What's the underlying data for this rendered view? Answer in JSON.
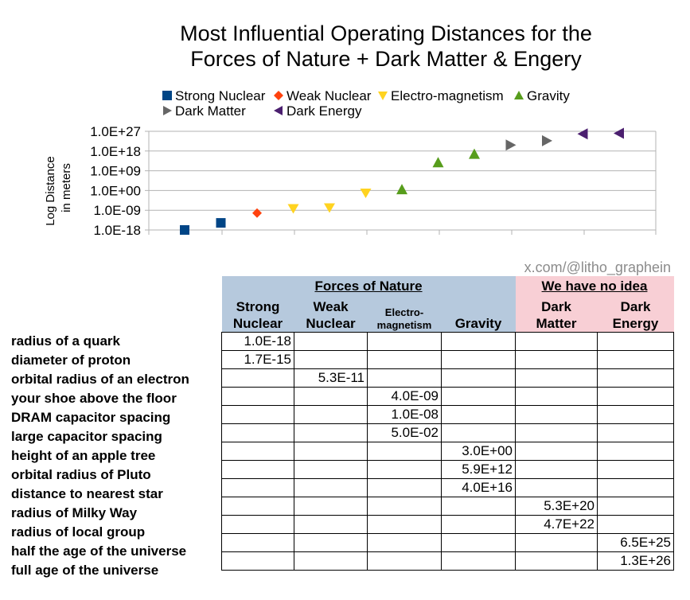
{
  "colors": {
    "strong": "#004586",
    "weak": "#ff420e",
    "em": "#ffd320",
    "gravity": "#579d1c",
    "dark_matter": "#666666",
    "dark_energy": "#4b1f6f",
    "grid": "#b3b3b3",
    "header_blue": "#b6c9dd",
    "header_pink": "#f8cfd5"
  },
  "chart_data": {
    "type": "scatter",
    "title": "Most Influential Operating Distances for the Forces of Nature + Dark Matter & Engery",
    "title_lines": [
      "Most Influential Operating Distances for the",
      "Forces of Nature + Dark Matter & Engery"
    ],
    "ylabel_lines": [
      "Log Distance",
      "in meters"
    ],
    "y_scale": "log",
    "ylim": [
      1e-18,
      1e+27
    ],
    "y_ticks": [
      {
        "value": 1e+27,
        "label": "1.0E+27"
      },
      {
        "value": 1e+18,
        "label": "1.0E+18"
      },
      {
        "value": 1000000000.0,
        "label": "1.0E+09"
      },
      {
        "value": 1,
        "label": "1.0E+00"
      },
      {
        "value": 1e-09,
        "label": "1.0E-09"
      },
      {
        "value": 1e-18,
        "label": "1.0E-18"
      }
    ],
    "grid": true,
    "legend_position": "top",
    "series": [
      {
        "name": "Strong Nuclear",
        "marker": "square",
        "color_key": "strong",
        "points": [
          {
            "x": 1,
            "y": 1e-18
          },
          {
            "x": 2,
            "y": 1.7e-15
          }
        ]
      },
      {
        "name": "Weak Nuclear",
        "marker": "diamond",
        "color_key": "weak",
        "points": [
          {
            "x": 3,
            "y": 5.3e-11
          }
        ]
      },
      {
        "name": "Electro-magnetism",
        "marker": "triangle-down",
        "color_key": "em",
        "points": [
          {
            "x": 4,
            "y": 4e-09
          },
          {
            "x": 5,
            "y": 1e-08
          },
          {
            "x": 6,
            "y": 0.05
          }
        ]
      },
      {
        "name": "Gravity",
        "marker": "triangle-up",
        "color_key": "gravity",
        "points": [
          {
            "x": 7,
            "y": 3.0
          },
          {
            "x": 8,
            "y": 5900000000000.0
          },
          {
            "x": 9,
            "y": 4e+16
          }
        ]
      },
      {
        "name": "Dark Matter",
        "marker": "triangle-right",
        "color_key": "dark_matter",
        "points": [
          {
            "x": 10,
            "y": 5.3e+20
          },
          {
            "x": 11,
            "y": 4.7e+22
          }
        ]
      },
      {
        "name": "Dark Energy",
        "marker": "triangle-left",
        "color_key": "dark_energy",
        "points": [
          {
            "x": 12,
            "y": 6.5e+25
          },
          {
            "x": 13,
            "y": 1.3e+26
          }
        ]
      }
    ]
  },
  "credit": "x.com/@litho_graphein",
  "table": {
    "group_forces": "Forces of Nature",
    "group_unknown": "We have no idea",
    "columns": [
      {
        "l1": "Strong",
        "l2": "Nuclear"
      },
      {
        "l1": "Weak",
        "l2": "Nuclear"
      },
      {
        "l1": "Electro-",
        "l2": "magnetism"
      },
      {
        "l1": "",
        "l2": "Gravity"
      },
      {
        "l1": "Dark",
        "l2": "Matter"
      },
      {
        "l1": "Dark",
        "l2": "Energy"
      }
    ],
    "rows": [
      {
        "label": "radius of a quark",
        "col": 0,
        "value": "1.0E-18"
      },
      {
        "label": "diameter of proton",
        "col": 0,
        "value": "1.7E-15"
      },
      {
        "label": "orbital radius of an electron",
        "col": 1,
        "value": "5.3E-11"
      },
      {
        "label": "your shoe above the floor",
        "col": 2,
        "value": "4.0E-09"
      },
      {
        "label": "DRAM capacitor spacing",
        "col": 2,
        "value": "1.0E-08"
      },
      {
        "label": "large capacitor spacing",
        "col": 2,
        "value": "5.0E-02"
      },
      {
        "label": "height of an apple tree",
        "col": 3,
        "value": "3.0E+00"
      },
      {
        "label": "orbital radius of Pluto",
        "col": 3,
        "value": "5.9E+12"
      },
      {
        "label": "distance to nearest star",
        "col": 3,
        "value": "4.0E+16"
      },
      {
        "label": "radius of Milky Way",
        "col": 4,
        "value": "5.3E+20"
      },
      {
        "label": "radius of local group",
        "col": 4,
        "value": "4.7E+22"
      },
      {
        "label": "half the age of the universe",
        "col": 5,
        "value": "6.5E+25"
      },
      {
        "label": "full age of the universe",
        "col": 5,
        "value": "1.3E+26"
      }
    ]
  }
}
